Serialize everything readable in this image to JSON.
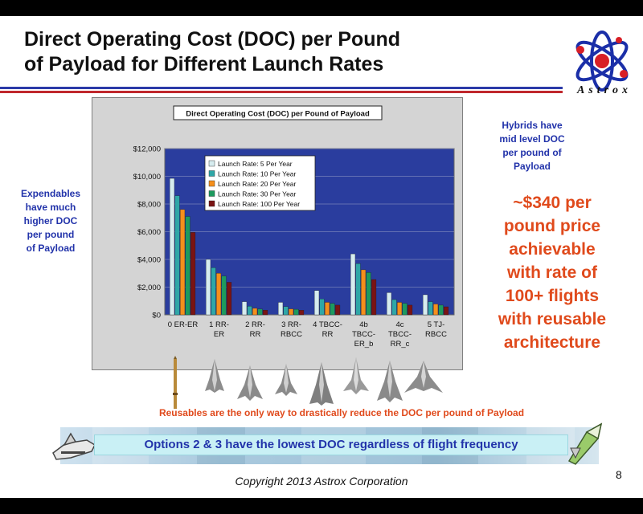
{
  "slide": {
    "title_line1": "Direct Operating Cost (DOC) per Pound",
    "title_line2": "of Payload for Different Launch Rates",
    "logo_text": "Astrox",
    "left_note": [
      "Expendables",
      "have much",
      "higher DOC",
      "per pound",
      "of Payload"
    ],
    "right_note": [
      "Hybrids have",
      "mid level DOC",
      "per pound of",
      "Payload"
    ],
    "price_note": [
      "~$340 per",
      "pound price",
      "achievable",
      "with rate of",
      "100+ flights",
      "with reusable",
      "architecture"
    ],
    "reusables_note": "Reusables are the only way to drastically reduce the DOC per pound of Payload",
    "options_banner": "Options 2 & 3 have the lowest DOC regardless of flight frequency",
    "copyright": "Copyright 2013 Astrox Corporation",
    "page_number": "8"
  },
  "colors": {
    "title_rule_blue": "#2b3aa8",
    "title_rule_red": "#c0282d",
    "note_blue": "#2233aa",
    "accent_orange": "#e04a1c",
    "plot_area": "#2a3d9e",
    "chart_frame": "#d4d4d4"
  },
  "chart_data": {
    "type": "bar",
    "title": "Direct Operating Cost (DOC)  per Pound of Payload",
    "categories": [
      [
        "0 ER-ER"
      ],
      [
        "1 RR-",
        "ER"
      ],
      [
        "2 RR-",
        "RR"
      ],
      [
        "3 RR-",
        "RBCC"
      ],
      [
        "4 TBCC-",
        "RR"
      ],
      [
        "4b",
        "TBCC-",
        "ER_b"
      ],
      [
        "4c",
        "TBCC-",
        "RR_c"
      ],
      [
        "5 TJ-",
        "RBCC"
      ]
    ],
    "series": [
      {
        "name": "Launch Rate: 5 Per Year",
        "color": "#d6ecef",
        "values": [
          9850,
          4000,
          950,
          900,
          1750,
          4400,
          1600,
          1450
        ]
      },
      {
        "name": "Launch Rate: 10 Per Year",
        "color": "#2fa7a7",
        "values": [
          8600,
          3400,
          620,
          600,
          1150,
          3700,
          1100,
          950
        ]
      },
      {
        "name": "Launch Rate: 20 Per Year",
        "color": "#f58f1c",
        "values": [
          7600,
          3000,
          470,
          430,
          900,
          3250,
          900,
          780
        ]
      },
      {
        "name": "Launch Rate: 30 Per Year",
        "color": "#1d9a5e",
        "values": [
          7100,
          2800,
          420,
          400,
          820,
          3050,
          830,
          700
        ]
      },
      {
        "name": "Launch Rate: 100 Per Year",
        "color": "#7a1414",
        "values": [
          5950,
          2350,
          340,
          330,
          700,
          2550,
          700,
          580
        ]
      }
    ],
    "y_ticks": [
      "$0",
      "$2,000",
      "$4,000",
      "$6,000",
      "$8,000",
      "$10,000",
      "$12,000"
    ],
    "ylim": [
      0,
      12000
    ],
    "legend": "top-left inside plot",
    "grid": true
  }
}
